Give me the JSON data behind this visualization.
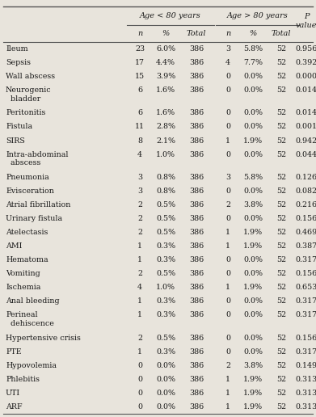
{
  "col_headers_top": [
    "Age < 80 years",
    "Age > 80 years"
  ],
  "col_headers_sub": [
    "n",
    "%",
    "Total",
    "n",
    "%",
    "Total"
  ],
  "p_value_header": "P\nvalue",
  "rows": [
    {
      "label": "Ileum",
      "label2": "",
      "n1": "23",
      "pct1": "6.0%",
      "tot1": "386",
      "n2": "3",
      "pct2": "5.8%",
      "tot2": "52",
      "p": "0.956"
    },
    {
      "label": "Sepsis",
      "label2": "",
      "n1": "17",
      "pct1": "4.4%",
      "tot1": "386",
      "n2": "4",
      "pct2": "7.7%",
      "tot2": "52",
      "p": "0.392"
    },
    {
      "label": "Wall abscess",
      "label2": "",
      "n1": "15",
      "pct1": "3.9%",
      "tot1": "386",
      "n2": "0",
      "pct2": "0.0%",
      "tot2": "52",
      "p": "0.000"
    },
    {
      "label": "Neurogenic",
      "label2": "  bladder",
      "n1": "6",
      "pct1": "1.6%",
      "tot1": "386",
      "n2": "0",
      "pct2": "0.0%",
      "tot2": "52",
      "p": "0.014"
    },
    {
      "label": "Peritonitis",
      "label2": "",
      "n1": "6",
      "pct1": "1.6%",
      "tot1": "386",
      "n2": "0",
      "pct2": "0.0%",
      "tot2": "52",
      "p": "0.014"
    },
    {
      "label": "Fistula",
      "label2": "",
      "n1": "11",
      "pct1": "2.8%",
      "tot1": "386",
      "n2": "0",
      "pct2": "0.0%",
      "tot2": "52",
      "p": "0.001"
    },
    {
      "label": "SIRS",
      "label2": "",
      "n1": "8",
      "pct1": "2.1%",
      "tot1": "386",
      "n2": "1",
      "pct2": "1.9%",
      "tot2": "52",
      "p": "0.942"
    },
    {
      "label": "Intra-abdominal",
      "label2": "  abscess",
      "n1": "4",
      "pct1": "1.0%",
      "tot1": "386",
      "n2": "0",
      "pct2": "0.0%",
      "tot2": "52",
      "p": "0.044"
    },
    {
      "label": "Pneumonia",
      "label2": "",
      "n1": "3",
      "pct1": "0.8%",
      "tot1": "386",
      "n2": "3",
      "pct2": "5.8%",
      "tot2": "52",
      "p": "0.126"
    },
    {
      "label": "Evisceration",
      "label2": "",
      "n1": "3",
      "pct1": "0.8%",
      "tot1": "386",
      "n2": "0",
      "pct2": "0.0%",
      "tot2": "52",
      "p": "0.082"
    },
    {
      "label": "Atrial fibrillation",
      "label2": "",
      "n1": "2",
      "pct1": "0.5%",
      "tot1": "386",
      "n2": "2",
      "pct2": "3.8%",
      "tot2": "52",
      "p": "0.216"
    },
    {
      "label": "Urinary fistula",
      "label2": "",
      "n1": "2",
      "pct1": "0.5%",
      "tot1": "386",
      "n2": "0",
      "pct2": "0.0%",
      "tot2": "52",
      "p": "0.156"
    },
    {
      "label": "Atelectasis",
      "label2": "",
      "n1": "2",
      "pct1": "0.5%",
      "tot1": "386",
      "n2": "1",
      "pct2": "1.9%",
      "tot2": "52",
      "p": "0.469"
    },
    {
      "label": "AMI",
      "label2": "",
      "n1": "1",
      "pct1": "0.3%",
      "tot1": "386",
      "n2": "1",
      "pct2": "1.9%",
      "tot2": "52",
      "p": "0.387"
    },
    {
      "label": "Hematoma",
      "label2": "",
      "n1": "1",
      "pct1": "0.3%",
      "tot1": "386",
      "n2": "0",
      "pct2": "0.0%",
      "tot2": "52",
      "p": "0.317"
    },
    {
      "label": "Vomiting",
      "label2": "",
      "n1": "2",
      "pct1": "0.5%",
      "tot1": "386",
      "n2": "0",
      "pct2": "0.0%",
      "tot2": "52",
      "p": "0.156"
    },
    {
      "label": "Ischemia",
      "label2": "",
      "n1": "4",
      "pct1": "1.0%",
      "tot1": "386",
      "n2": "1",
      "pct2": "1.9%",
      "tot2": "52",
      "p": "0.653"
    },
    {
      "label": "Anal bleeding",
      "label2": "",
      "n1": "1",
      "pct1": "0.3%",
      "tot1": "386",
      "n2": "0",
      "pct2": "0.0%",
      "tot2": "52",
      "p": "0.317"
    },
    {
      "label": "Perineal",
      "label2": "  dehiscence",
      "n1": "1",
      "pct1": "0.3%",
      "tot1": "386",
      "n2": "0",
      "pct2": "0.0%",
      "tot2": "52",
      "p": "0.317"
    },
    {
      "label": "Hypertensive crisis",
      "label2": "",
      "n1": "2",
      "pct1": "0.5%",
      "tot1": "386",
      "n2": "0",
      "pct2": "0.0%",
      "tot2": "52",
      "p": "0.156"
    },
    {
      "label": "PTE",
      "label2": "",
      "n1": "1",
      "pct1": "0.3%",
      "tot1": "386",
      "n2": "0",
      "pct2": "0.0%",
      "tot2": "52",
      "p": "0.317"
    },
    {
      "label": "Hypovolemia",
      "label2": "",
      "n1": "0",
      "pct1": "0.0%",
      "tot1": "386",
      "n2": "2",
      "pct2": "3.8%",
      "tot2": "52",
      "p": "0.149"
    },
    {
      "label": "Phlebitis",
      "label2": "",
      "n1": "0",
      "pct1": "0.0%",
      "tot1": "386",
      "n2": "1",
      "pct2": "1.9%",
      "tot2": "52",
      "p": "0.313"
    },
    {
      "label": "UTI",
      "label2": "",
      "n1": "0",
      "pct1": "0.0%",
      "tot1": "386",
      "n2": "1",
      "pct2": "1.9%",
      "tot2": "52",
      "p": "0.313"
    },
    {
      "label": "ARF",
      "label2": "",
      "n1": "0",
      "pct1": "0.0%",
      "tot1": "386",
      "n2": "1",
      "pct2": "1.9%",
      "tot2": "52",
      "p": "0.313"
    }
  ],
  "bg_color": "#e8e4dc",
  "text_color": "#1a1a1a",
  "line_color": "#555555",
  "font_size": 6.8,
  "header_font_size": 7.0,
  "two_line_rows": [
    3,
    7,
    18
  ],
  "single_row_units": 1.0,
  "double_row_units": 1.65,
  "fig_width": 3.91,
  "fig_height": 5.16,
  "dpi": 100
}
